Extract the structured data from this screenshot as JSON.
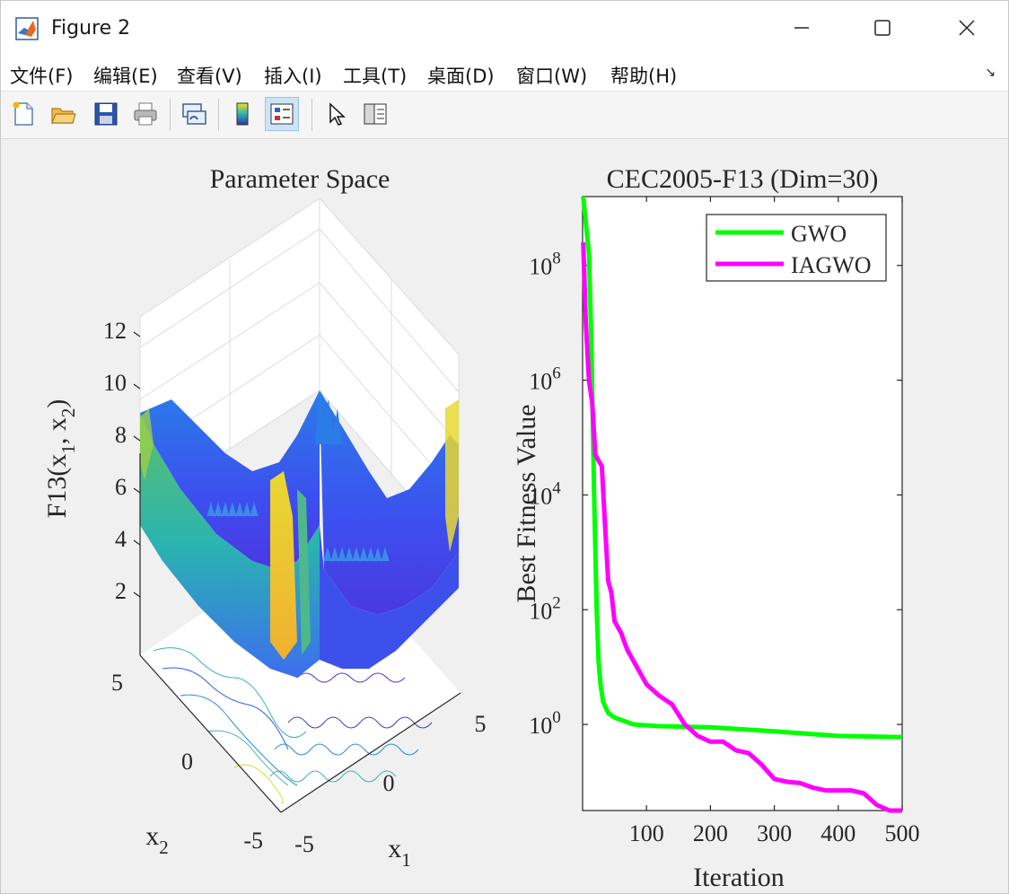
{
  "window": {
    "title": "Figure 2",
    "controls": [
      "minimize",
      "maximize",
      "close"
    ]
  },
  "menu": {
    "items": [
      "文件(F)",
      "编辑(E)",
      "查看(V)",
      "插入(I)",
      "工具(T)",
      "桌面(D)",
      "窗口(W)",
      "帮助(H)"
    ]
  },
  "toolbar": {
    "icons": [
      "new-figure-icon",
      "open-file-icon",
      "save-icon",
      "print-icon",
      "link-plot-icon",
      "colorbar-icon",
      "legend-icon",
      "edit-plot-icon",
      "property-inspector-icon"
    ],
    "active": "legend-icon"
  },
  "left_plot": {
    "title": "Parameter Space",
    "zlabel": "F13(x₁, x₂)",
    "zlabel_parts": {
      "main": "F13(x",
      "sub1": "1",
      "mid": ", x",
      "sub2": "2",
      "end": ")"
    },
    "xlabel": "x₁",
    "xlabel_parts": {
      "main": "x",
      "sub": "1"
    },
    "ylabel": "x₂",
    "ylabel_parts": {
      "main": "x",
      "sub": "2"
    },
    "zticks": [
      "2",
      "4",
      "6",
      "8",
      "10",
      "12"
    ],
    "xticks": [
      "-5",
      "0",
      "5"
    ],
    "yticks": [
      "-5",
      "0",
      "5"
    ]
  },
  "chart_data": {
    "type": "line",
    "title": "CEC2005-F13 (Dim=30)",
    "xlabel": "Iteration",
    "ylabel": "Best Fitness Value",
    "xlim": [
      0,
      500
    ],
    "ylim_log10": [
      -1.5,
      9.2
    ],
    "yscale": "log",
    "xticks": [
      "100",
      "200",
      "300",
      "400",
      "500"
    ],
    "yticks": [
      {
        "base": "10",
        "exp": "0",
        "log10": 0
      },
      {
        "base": "10",
        "exp": "2",
        "log10": 2
      },
      {
        "base": "10",
        "exp": "4",
        "log10": 4
      },
      {
        "base": "10",
        "exp": "6",
        "log10": 6
      },
      {
        "base": "10",
        "exp": "8",
        "log10": 8
      }
    ],
    "legend_position": "top-right",
    "series": [
      {
        "name": "GWO",
        "color": "#00ff00",
        "x": [
          1,
          10,
          14,
          18,
          22,
          25,
          28,
          32,
          36,
          40,
          50,
          60,
          80,
          120,
          200,
          300,
          400,
          500
        ],
        "log10y": [
          9.2,
          8.2,
          6.5,
          4.0,
          2.0,
          1.1,
          0.7,
          0.4,
          0.3,
          0.2,
          0.12,
          0.08,
          0.0,
          -0.03,
          -0.05,
          -0.12,
          -0.2,
          -0.22
        ]
      },
      {
        "name": "IAGWO",
        "color": "#ff00ff",
        "x": [
          1,
          5,
          10,
          15,
          20,
          25,
          30,
          35,
          40,
          45,
          50,
          60,
          70,
          85,
          100,
          120,
          140,
          160,
          180,
          200,
          220,
          240,
          260,
          280,
          300,
          320,
          340,
          360,
          380,
          400,
          420,
          440,
          460,
          480,
          500
        ],
        "log10y": [
          8.4,
          7.0,
          6.0,
          5.6,
          4.7,
          4.6,
          4.5,
          3.5,
          2.5,
          2.3,
          1.8,
          1.6,
          1.3,
          1.0,
          0.7,
          0.5,
          0.35,
          0.0,
          -0.2,
          -0.3,
          -0.3,
          -0.45,
          -0.5,
          -0.7,
          -0.95,
          -1.0,
          -1.02,
          -1.1,
          -1.15,
          -1.15,
          -1.15,
          -1.2,
          -1.4,
          -1.5,
          -1.52
        ]
      }
    ]
  }
}
